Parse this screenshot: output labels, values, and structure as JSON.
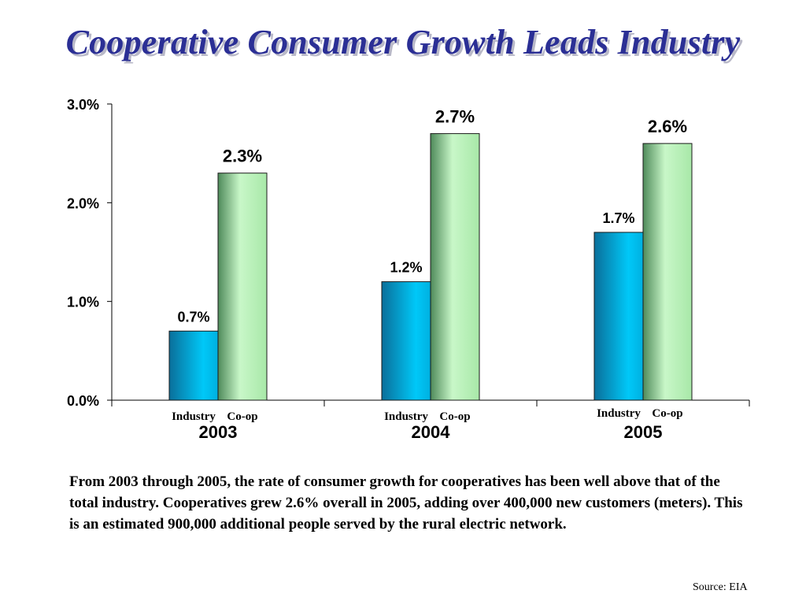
{
  "slide": {
    "title": "Cooperative Consumer Growth Leads Industry",
    "caption": "From 2003 through 2005, the rate of consumer growth for cooperatives has been well above that of the total industry.  Cooperatives grew 2.6% overall in 2005, adding over 400,000 new customers (meters).  This is an estimated 900,000 additional people served by the rural electric network.",
    "source": "Source:  EIA"
  },
  "chart_data": {
    "type": "bar",
    "title": "",
    "xlabel": "",
    "ylabel": "",
    "categories": [
      "2003",
      "2004",
      "2005"
    ],
    "bar_labels": [
      "Industry",
      "Co-op"
    ],
    "series": [
      {
        "name": "Industry",
        "values": [
          0.7,
          1.2,
          1.7
        ],
        "labels": [
          "0.7%",
          "1.2%",
          "1.7%"
        ],
        "color": "#00b4e6"
      },
      {
        "name": "Co-op",
        "values": [
          2.3,
          2.7,
          2.6
        ],
        "labels": [
          "2.3%",
          "2.7%",
          "2.6%"
        ],
        "color": "#b9f0b9"
      }
    ],
    "ylim": [
      0,
      3
    ],
    "yticks": [
      0,
      1,
      2,
      3
    ],
    "ytick_labels": [
      "0.0%",
      "1.0%",
      "2.0%",
      "3.0%"
    ],
    "grid": false,
    "legend": "none"
  }
}
